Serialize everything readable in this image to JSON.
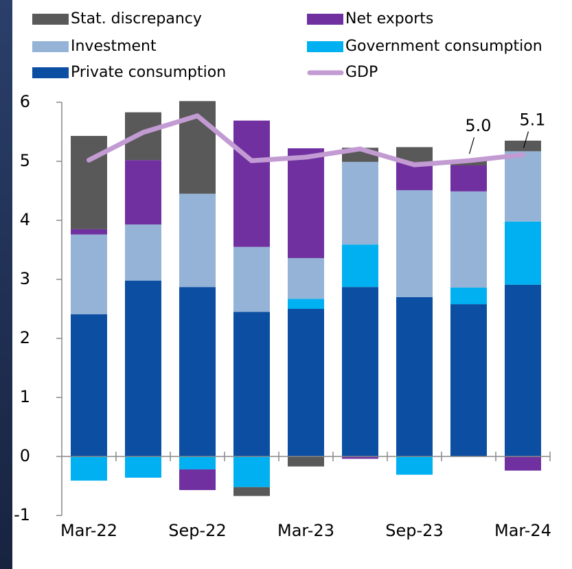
{
  "chart_data": {
    "type": "bar",
    "categories": [
      "Mar-22",
      null,
      "Sep-22",
      null,
      "Mar-23",
      null,
      "Sep-23",
      null,
      "Mar-24"
    ],
    "series": [
      {
        "name": "Private consumption",
        "color": "#0b4ea2",
        "values": [
          2.41,
          2.98,
          2.87,
          2.45,
          2.5,
          2.87,
          2.7,
          2.58,
          2.91
        ]
      },
      {
        "name": "Government consumption",
        "color": "#00b0f0",
        "values": [
          -0.41,
          -0.36,
          -0.22,
          -0.52,
          0.17,
          0.72,
          -0.31,
          0.28,
          1.07
        ]
      },
      {
        "name": "Investment",
        "color": "#95b3d7",
        "values": [
          1.35,
          0.95,
          1.58,
          1.1,
          0.69,
          1.4,
          1.81,
          1.63,
          1.19
        ]
      },
      {
        "name": "Net exports",
        "color": "#7030a0",
        "values": [
          0.09,
          1.09,
          -0.35,
          2.14,
          1.86,
          -0.04,
          0.48,
          0.44,
          -0.24
        ]
      },
      {
        "name": "Stat. discrepancy",
        "color": "#595959",
        "values": [
          1.58,
          0.81,
          1.57,
          -0.15,
          -0.17,
          0.24,
          0.25,
          0.08,
          0.18
        ]
      },
      {
        "name": "GDP",
        "type": "line",
        "color": "#c39bd3",
        "values": [
          5.02,
          5.49,
          5.77,
          5.01,
          5.07,
          5.21,
          4.94,
          5.01,
          5.11
        ],
        "value_labels": [
          null,
          null,
          null,
          null,
          null,
          null,
          null,
          "5.0",
          "5.1"
        ]
      }
    ],
    "ylim": [
      -1,
      6
    ],
    "yticks": [
      -1,
      0,
      1,
      2,
      3,
      4,
      5,
      6
    ]
  }
}
